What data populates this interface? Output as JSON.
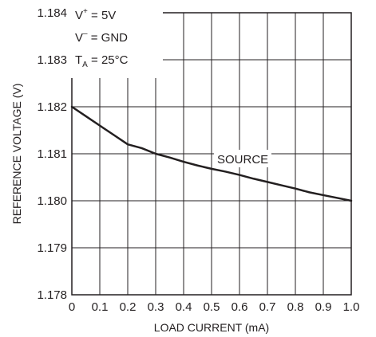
{
  "chart_data": {
    "type": "line",
    "title": "",
    "xlabel": "LOAD CURRENT (mA)",
    "ylabel": "REFERENCE VOLTAGE (V)",
    "xlim": [
      0,
      1.0
    ],
    "ylim": [
      1.178,
      1.184
    ],
    "x_ticks": [
      "0",
      "0.1",
      "0.2",
      "0.3",
      "0.4",
      "0.5",
      "0.6",
      "0.7",
      "0.8",
      "0.9",
      "1.0"
    ],
    "y_ticks": [
      "1.178",
      "1.179",
      "1.180",
      "1.181",
      "1.182",
      "1.183",
      "1.184"
    ],
    "grid": true,
    "series": [
      {
        "name": "SOURCE",
        "x": [
          0,
          0.05,
          0.1,
          0.15,
          0.2,
          0.25,
          0.3,
          0.35,
          0.4,
          0.45,
          0.5,
          0.55,
          0.6,
          0.65,
          0.7,
          0.75,
          0.8,
          0.85,
          0.9,
          0.95,
          1.0
        ],
        "y": [
          1.182,
          1.1818,
          1.1816,
          1.1814,
          1.1812,
          1.18112,
          1.181,
          1.18092,
          1.18083,
          1.18075,
          1.18068,
          1.18062,
          1.18055,
          1.18047,
          1.1804,
          1.18033,
          1.18026,
          1.18018,
          1.18012,
          1.18006,
          1.18
        ]
      }
    ],
    "annotations": {
      "vplus_main": "V",
      "vplus_sup": "+",
      "vplus_rest": " = 5V",
      "vminus_main": "V",
      "vminus_sup": "–",
      "vminus_rest": " = GND",
      "ta_main": "T",
      "ta_sub": "A",
      "ta_rest": " = 25°C",
      "curve_label": "SOURCE"
    }
  }
}
